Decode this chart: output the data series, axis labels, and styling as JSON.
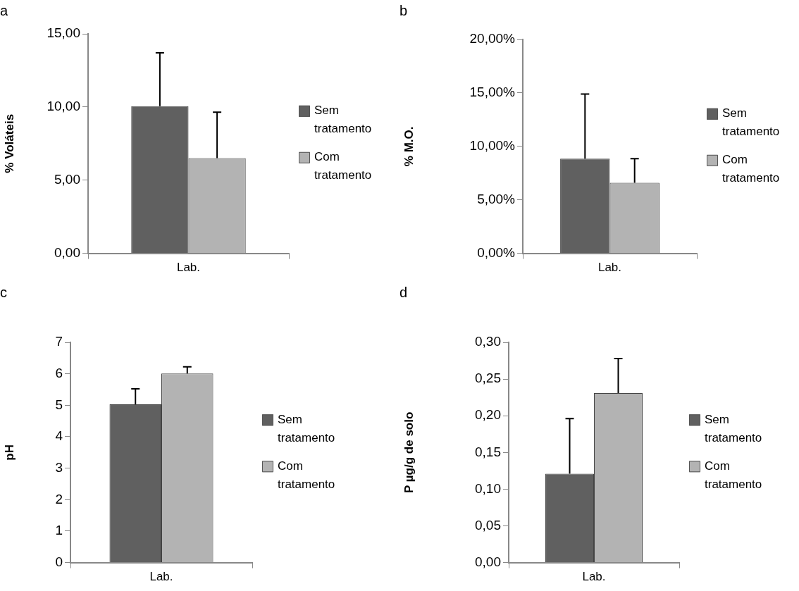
{
  "chart_data": [
    {
      "type": "bar",
      "title": "a",
      "xlabel": null,
      "ylabel": "% Voláteis",
      "categories": [
        "Lab."
      ],
      "grid": false,
      "legend": "right",
      "ylim": [
        0,
        15
      ],
      "yticks": [
        {
          "value": 0,
          "label": "0,00"
        },
        {
          "value": 5,
          "label": "5,00"
        },
        {
          "value": 10,
          "label": "10,00"
        },
        {
          "value": 15,
          "label": "15,00"
        }
      ],
      "series": [
        {
          "name": "Sem tratamento",
          "color": "#606060",
          "values": [
            10.05
          ],
          "errors": [
            [
              10.05,
              13.7
            ]
          ]
        },
        {
          "name": "Com tratamento",
          "color": "#b3b3b3",
          "values": [
            6.5
          ],
          "errors": [
            [
              6.5,
              9.65
            ]
          ]
        }
      ]
    },
    {
      "type": "bar",
      "title": "b",
      "ylabel": "% M.O.",
      "categories": [
        "Lab."
      ],
      "grid": false,
      "legend": "right",
      "ylim": [
        0,
        20
      ],
      "yticks": [
        {
          "value": 0,
          "label": "0,00%"
        },
        {
          "value": 5,
          "label": "5,00%"
        },
        {
          "value": 10,
          "label": "10,00%"
        },
        {
          "value": 15,
          "label": "15,00%"
        },
        {
          "value": 20,
          "label": "20,00%"
        }
      ],
      "series": [
        {
          "name": "Sem tratamento",
          "color": "#606060",
          "values": [
            8.85
          ],
          "errors": [
            [
              8.85,
              14.9
            ]
          ]
        },
        {
          "name": "Com tratamento",
          "color": "#b3b3b3",
          "values": [
            6.6
          ],
          "errors": [
            [
              6.6,
              8.85
            ]
          ]
        }
      ]
    },
    {
      "type": "bar",
      "title": "c",
      "ylabel": "pH",
      "categories": [
        "Lab."
      ],
      "grid": false,
      "legend": "right",
      "ylim": [
        0,
        7
      ],
      "yticks": [
        0,
        1,
        2,
        3,
        4,
        5,
        6,
        7
      ],
      "series": [
        {
          "name": "Sem tratamento",
          "color": "#606060",
          "values": [
            5.03
          ],
          "errors": [
            [
              5.03,
              5.52
            ]
          ]
        },
        {
          "name": "Com tratamento",
          "color": "#b3b3b3",
          "values": [
            6.01
          ],
          "errors": [
            [
              6.01,
              6.22
            ]
          ]
        }
      ]
    },
    {
      "type": "bar",
      "title": "d",
      "ylabel": "P µg/g de solo",
      "categories": [
        "Lab."
      ],
      "grid": false,
      "legend": "right",
      "ylim": [
        0,
        0.3
      ],
      "yticks": [
        {
          "value": 0,
          "label": "0,00"
        },
        {
          "value": 0.05,
          "label": "0,05"
        },
        {
          "value": 0.1,
          "label": "0,10"
        },
        {
          "value": 0.15,
          "label": "0,15"
        },
        {
          "value": 0.2,
          "label": "0,20"
        },
        {
          "value": 0.25,
          "label": "0,25"
        },
        {
          "value": 0.3,
          "label": "0,30"
        }
      ],
      "series": [
        {
          "name": "Sem tratamento",
          "color": "#606060",
          "values": [
            0.121
          ],
          "errors": [
            [
              0.121,
              0.196
            ]
          ]
        },
        {
          "name": "Com tratamento",
          "color": "#b3b3b3",
          "values": [
            0.231
          ],
          "errors": [
            [
              0.231,
              0.278
            ]
          ]
        }
      ]
    }
  ]
}
